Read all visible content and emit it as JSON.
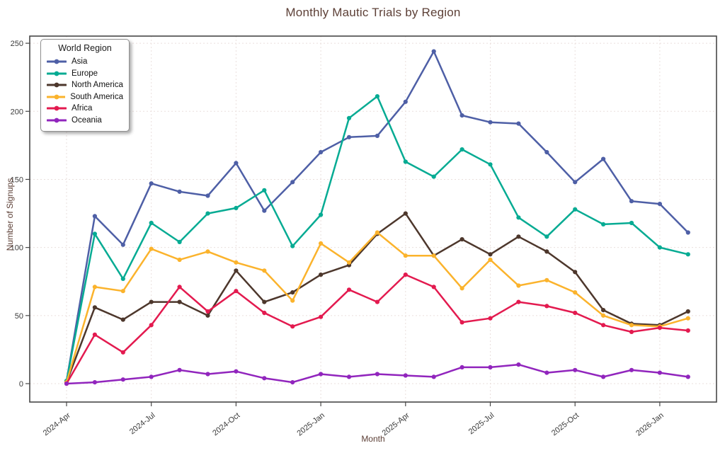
{
  "figure": {
    "title": "Monthly Mautic Trials by Region",
    "title_color": "#5d4037"
  },
  "axes": {
    "xlabel": "Month",
    "ylabel": "Number of Signups",
    "tick_color": "#3a3a3a",
    "label_color": "#5d4037"
  },
  "legend": {
    "title": "World Region"
  },
  "chart_data": {
    "type": "line",
    "title": "Monthly Mautic Trials by Region",
    "xlabel": "Month",
    "ylabel": "Number of Signups",
    "grid": true,
    "legend_position": "upper-left",
    "legend_title": "World Region",
    "ylim": [
      -13,
      256
    ],
    "yticks": [
      0,
      50,
      100,
      150,
      200,
      250
    ],
    "x": [
      "2024-Apr",
      "2024-May",
      "2024-Jun",
      "2024-Jul",
      "2024-Aug",
      "2024-Sep",
      "2024-Oct",
      "2024-Nov",
      "2024-Dec",
      "2025-Jan",
      "2025-Feb",
      "2025-Mar",
      "2025-Apr",
      "2025-May",
      "2025-Jun",
      "2025-Jul",
      "2025-Aug",
      "2025-Sep",
      "2025-Oct",
      "2025-Nov",
      "2025-Dec",
      "2026-Jan",
      "2026-Feb"
    ],
    "xtick_indices": [
      0,
      3,
      6,
      9,
      12,
      15,
      18,
      21
    ],
    "xtick_labels": [
      "2024-Apr",
      "2024-Jul",
      "2024-Oct",
      "2025-Jan",
      "2025-Apr",
      "2025-Jul",
      "2025-Oct",
      "2026-Jan"
    ],
    "series": [
      {
        "name": "Asia",
        "slug": "asia",
        "color": "#4e5fa6",
        "values": [
          2,
          123,
          102,
          147,
          141,
          138,
          162,
          127,
          148,
          170,
          181,
          182,
          207,
          244,
          197,
          192,
          191,
          170,
          148,
          165,
          134,
          132,
          111
        ]
      },
      {
        "name": "Europe",
        "slug": "europe",
        "color": "#06ab93",
        "values": [
          2,
          110,
          77,
          118,
          104,
          125,
          129,
          142,
          101,
          124,
          195,
          211,
          163,
          152,
          172,
          161,
          122,
          108,
          128,
          117,
          118,
          100,
          95
        ]
      },
      {
        "name": "North America",
        "slug": "north-america",
        "color": "#4d372c",
        "values": [
          1,
          56,
          47,
          60,
          60,
          50,
          83,
          60,
          67,
          80,
          87,
          110,
          125,
          94,
          106,
          95,
          108,
          97,
          82,
          54,
          44,
          43,
          53
        ]
      },
      {
        "name": "South America",
        "slug": "south-america",
        "color": "#fbb32c",
        "values": [
          1,
          71,
          68,
          99,
          91,
          97,
          89,
          83,
          61,
          103,
          89,
          111,
          94,
          94,
          70,
          91,
          72,
          76,
          67,
          50,
          43,
          42,
          48
        ]
      },
      {
        "name": "Africa",
        "slug": "africa",
        "color": "#e31a4f",
        "values": [
          0,
          36,
          23,
          43,
          71,
          53,
          68,
          52,
          42,
          49,
          69,
          60,
          80,
          71,
          45,
          48,
          60,
          57,
          52,
          43,
          38,
          41,
          39
        ]
      },
      {
        "name": "Oceania",
        "slug": "oceania",
        "color": "#9125bd",
        "values": [
          0,
          1,
          3,
          5,
          10,
          7,
          9,
          4,
          1,
          7,
          5,
          7,
          6,
          5,
          12,
          12,
          14,
          8,
          10,
          5,
          10,
          8,
          5
        ]
      }
    ]
  }
}
